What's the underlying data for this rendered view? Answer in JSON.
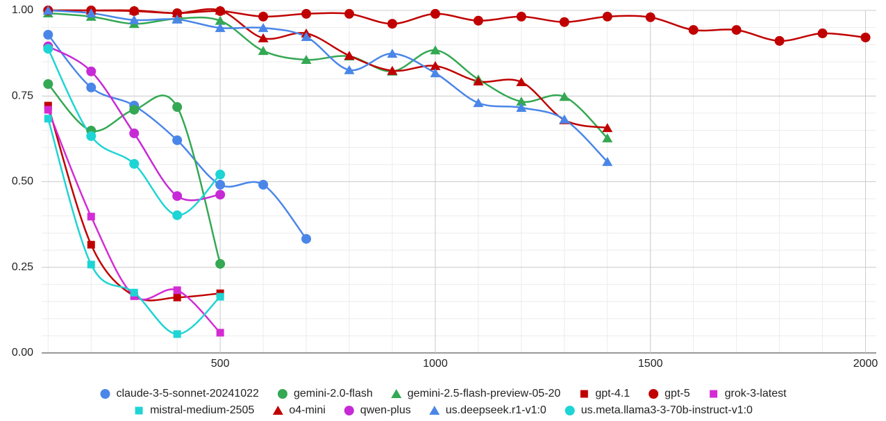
{
  "chart_data": {
    "type": "line",
    "x": [
      100,
      200,
      300,
      400,
      500,
      600,
      700,
      800,
      900,
      1000,
      1100,
      1200,
      1300,
      1400,
      1500,
      1600,
      1700,
      1800,
      1900,
      2000
    ],
    "xlim": [
      85,
      2025
    ],
    "xticks": [
      500,
      1000,
      1500,
      2000
    ],
    "ylim": [
      0,
      1
    ],
    "yticks": [
      {
        "value": 0,
        "label": "0.00"
      },
      {
        "value": 0.25,
        "label": "0.25"
      },
      {
        "value": 0.5,
        "label": "0.50"
      },
      {
        "value": 0.75,
        "label": "0.75"
      },
      {
        "value": 1,
        "label": "1.00"
      }
    ],
    "grid": true,
    "minor_grid": true,
    "smooth": true,
    "legend": "bottom",
    "series": [
      {
        "name": "claude-3-5-sonnet-20241022",
        "color": "#4a86e8",
        "marker": "circle",
        "values": [
          0.929,
          0.775,
          0.722,
          0.621,
          0.491,
          0.491,
          0.333,
          null,
          null,
          null,
          null,
          null,
          null,
          null,
          null,
          null,
          null,
          null,
          null,
          null
        ]
      },
      {
        "name": "gemini-2.0-flash",
        "color": "#34a853",
        "marker": "circle",
        "values": [
          0.785,
          0.649,
          0.71,
          0.718,
          0.26,
          null,
          null,
          null,
          null,
          null,
          null,
          null,
          null,
          null,
          null,
          null,
          null,
          null,
          null,
          null
        ]
      },
      {
        "name": "gemini-2.5-flash-preview-05-20",
        "color": "#34a853",
        "marker": "triangle",
        "values": [
          0.992,
          0.982,
          0.961,
          0.976,
          0.97,
          0.882,
          0.856,
          0.866,
          0.822,
          0.884,
          0.799,
          0.734,
          0.748,
          0.627,
          null,
          null,
          null,
          null,
          null,
          null
        ]
      },
      {
        "name": "gpt-4.1",
        "color": "#c00000",
        "marker": "square",
        "values": [
          0.722,
          0.316,
          0.166,
          0.162,
          0.174,
          null,
          null,
          null,
          null,
          null,
          null,
          null,
          null,
          null,
          null,
          null,
          null,
          null,
          null,
          null
        ]
      },
      {
        "name": "gpt-5",
        "color": "#c00000",
        "marker": "circle",
        "values": [
          1.0,
          1.0,
          0.998,
          0.992,
          0.998,
          0.982,
          0.99,
          0.99,
          0.961,
          0.99,
          0.97,
          0.982,
          0.966,
          0.982,
          0.98,
          0.943,
          0.943,
          0.911,
          0.933,
          0.921
        ]
      },
      {
        "name": "grok-3-latest",
        "color": "#d42bd4",
        "marker": "square",
        "values": [
          0.71,
          0.398,
          0.166,
          0.183,
          0.059,
          null,
          null,
          null,
          null,
          null,
          null,
          null,
          null,
          null,
          null,
          null,
          null,
          null,
          null,
          null
        ]
      },
      {
        "name": "mistral-medium-2505",
        "color": "#1fd4d4",
        "marker": "square",
        "values": [
          0.684,
          0.258,
          0.176,
          0.055,
          0.164,
          null,
          null,
          null,
          null,
          null,
          null,
          null,
          null,
          null,
          null,
          null,
          null,
          null,
          null,
          null
        ]
      },
      {
        "name": "o4-mini",
        "color": "#c00000",
        "marker": "triangle",
        "values": [
          1.0,
          1.0,
          1.0,
          0.992,
          1.0,
          0.919,
          0.933,
          0.868,
          0.824,
          0.838,
          0.793,
          0.791,
          0.68,
          0.657,
          null,
          null,
          null,
          null,
          null,
          null
        ]
      },
      {
        "name": "qwen-plus",
        "color": "#c62ad6",
        "marker": "circle",
        "values": [
          0.895,
          0.822,
          0.641,
          0.458,
          0.462,
          null,
          null,
          null,
          null,
          null,
          null,
          null,
          null,
          null,
          null,
          null,
          null,
          null,
          null,
          null
        ]
      },
      {
        "name": "us.deepseek.r1-v1:0",
        "color": "#4a86e8",
        "marker": "triangle",
        "values": [
          1.0,
          0.992,
          0.972,
          0.974,
          0.949,
          0.949,
          0.923,
          0.826,
          0.874,
          0.817,
          0.73,
          0.716,
          0.682,
          0.558,
          null,
          null,
          null,
          null,
          null,
          null
        ]
      },
      {
        "name": "us.meta.llama3-3-70b-instruct-v1:0",
        "color": "#1fd4d4",
        "marker": "circle",
        "values": [
          0.888,
          0.633,
          0.552,
          0.402,
          0.521,
          null,
          null,
          null,
          null,
          null,
          null,
          null,
          null,
          null,
          null,
          null,
          null,
          null,
          null,
          null
        ]
      }
    ]
  }
}
